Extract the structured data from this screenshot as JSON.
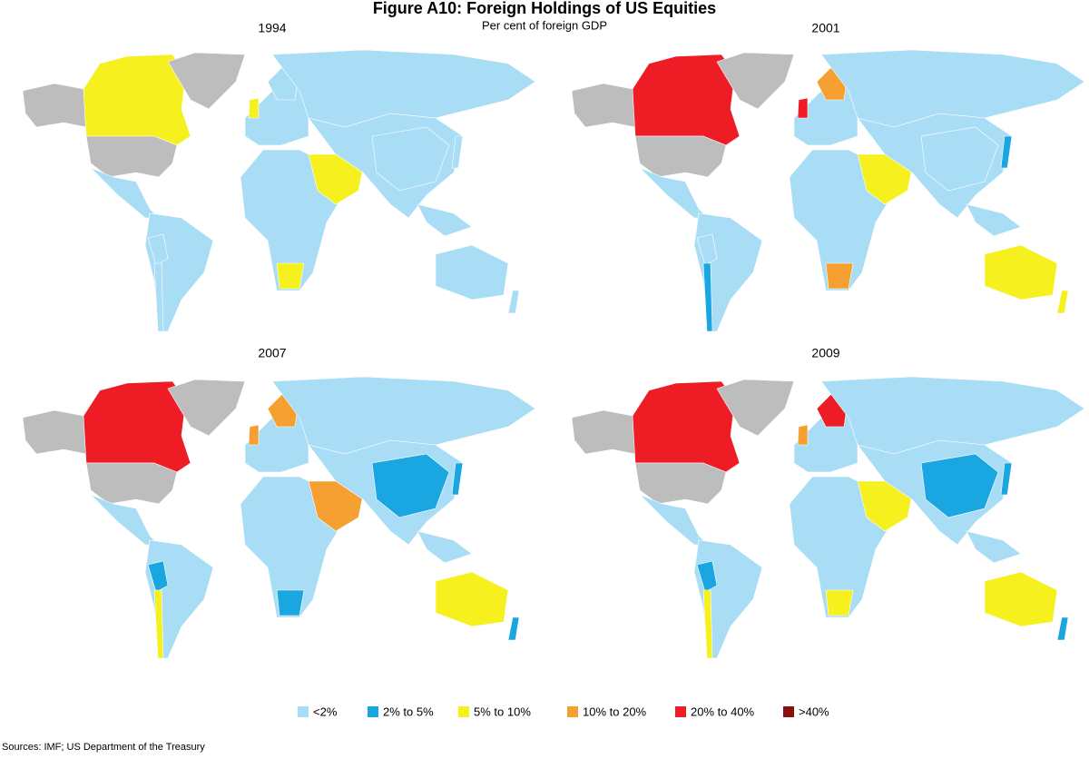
{
  "title": "Figure A10: Foreign Holdings of US Equities",
  "subtitle": "Per cent of foreign GDP",
  "panels": [
    {
      "year": "1994"
    },
    {
      "year": "2001"
    },
    {
      "year": "2007"
    },
    {
      "year": "2009"
    }
  ],
  "legend": [
    {
      "label": "<2%",
      "color": "#a8ddf5"
    },
    {
      "label": "2% to 5%",
      "color": "#1aa6e0"
    },
    {
      "label": "5% to 10%",
      "color": "#f5f01e"
    },
    {
      "label": "10% to 20%",
      "color": "#f5a030"
    },
    {
      "label": "20% to 40%",
      "color": "#ee1c25"
    },
    {
      "label": ">40%",
      "color": "#8b0e0e"
    }
  ],
  "source": "Sources:  IMF; US Department of the Treasury"
}
